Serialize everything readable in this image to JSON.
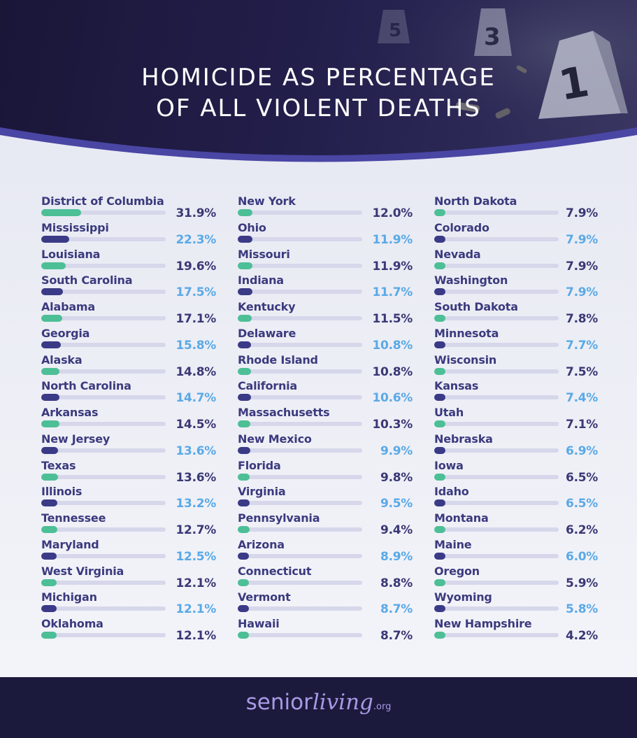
{
  "title_lines": [
    "HOMICIDE AS PERCENTAGE",
    "OF ALL VIOLENT DEATHS"
  ],
  "brand": {
    "part1": "senior",
    "part2": "living",
    "tld": ".org"
  },
  "colors": {
    "green": "#4dbf96",
    "navy": "#3b3a87",
    "light_value": "#5aa9e6",
    "dark_value": "#3a3875",
    "track": "#d6d7ea"
  },
  "chart_data": {
    "type": "bar",
    "title": "HOMICIDE AS PERCENTAGE OF ALL VIOLENT DEATHS",
    "unit": "%",
    "xlim": [
      0,
      100
    ],
    "columns": [
      {
        "categories": [
          "District of Columbia",
          "Mississippi",
          "Louisiana",
          "South Carolina",
          "Alabama",
          "Georgia",
          "Alaska",
          "North Carolina",
          "Arkansas",
          "New Jersey",
          "Texas",
          "Illinois",
          "Tennessee",
          "Maryland",
          "West Virginia",
          "Michigan",
          "Oklahoma"
        ],
        "values": [
          31.9,
          22.3,
          19.6,
          17.5,
          17.1,
          15.8,
          14.8,
          14.7,
          14.5,
          13.6,
          13.6,
          13.2,
          12.7,
          12.5,
          12.1,
          12.1,
          12.1
        ],
        "labels": [
          "31.9%",
          "22.3%",
          "19.6%",
          "17.5%",
          "17.1%",
          "15.8%",
          "14.8%",
          "14.7%",
          "14.5%",
          "13.6%",
          "13.6%",
          "13.2%",
          "12.7%",
          "12.5%",
          "12.1%",
          "12.1%",
          "12.1%"
        ]
      },
      {
        "categories": [
          "New York",
          "Ohio",
          "Missouri",
          "Indiana",
          "Kentucky",
          "Delaware",
          "Rhode Island",
          "California",
          "Massachusetts",
          "New Mexico",
          "Florida",
          "Virginia",
          "Pennsylvania",
          "Arizona",
          "Connecticut",
          "Vermont",
          "Hawaii"
        ],
        "values": [
          12.0,
          11.9,
          11.9,
          11.7,
          11.5,
          10.8,
          10.8,
          10.6,
          10.3,
          9.9,
          9.8,
          9.5,
          9.4,
          8.9,
          8.8,
          8.7,
          8.7
        ],
        "labels": [
          "12.0%",
          "11.9%",
          "11.9%",
          "11.7%",
          "11.5%",
          "10.8%",
          "10.8%",
          "10.6%",
          "10.3%",
          "9.9%",
          "9.8%",
          "9.5%",
          "9.4%",
          "8.9%",
          "8.8%",
          "8.7%",
          "8.7%"
        ]
      },
      {
        "categories": [
          "North Dakota",
          "Colorado",
          "Nevada",
          "Washington",
          "South Dakota",
          "Minnesota",
          "Wisconsin",
          "Kansas",
          "Utah",
          "Nebraska",
          "Iowa",
          "Idaho",
          "Montana",
          "Maine",
          "Oregon",
          "Wyoming",
          "New Hampshire"
        ],
        "values": [
          7.9,
          7.9,
          7.9,
          7.9,
          7.8,
          7.7,
          7.5,
          7.4,
          7.1,
          6.9,
          6.5,
          6.5,
          6.2,
          6.0,
          5.9,
          5.8,
          4.2
        ],
        "labels": [
          "7.9%",
          "7.9%",
          "7.9%",
          "7.9%",
          "7.8%",
          "7.7%",
          "7.5%",
          "7.4%",
          "7.1%",
          "6.9%",
          "6.5%",
          "6.5%",
          "6.2%",
          "6.0%",
          "5.9%",
          "5.8%",
          "4.2%"
        ]
      }
    ]
  }
}
